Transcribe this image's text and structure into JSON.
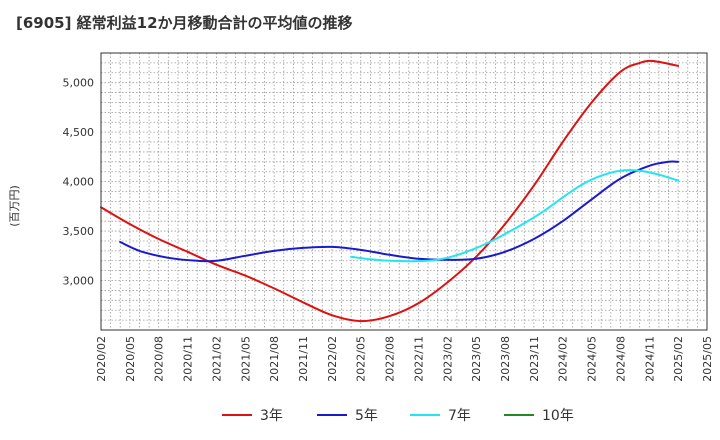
{
  "chart_data": {
    "type": "line",
    "title": "[6905]  経常利益12か月移動合計の平均値の推移",
    "ylabel": "(百万円)",
    "xlabel": "",
    "ylim": [
      2500,
      5300
    ],
    "yticks": [
      3000,
      3500,
      4000,
      4500,
      5000
    ],
    "ytick_labels": [
      "3,000",
      "3,500",
      "4,000",
      "4,500",
      "5,000"
    ],
    "x_tick_labels": [
      "2020/02",
      "2020/05",
      "2020/08",
      "2020/11",
      "2021/02",
      "2021/05",
      "2021/08",
      "2021/11",
      "2022/02",
      "2022/05",
      "2022/08",
      "2022/11",
      "2023/02",
      "2023/05",
      "2023/08",
      "2023/11",
      "2024/02",
      "2024/05",
      "2024/08",
      "2024/11",
      "2025/02",
      "2025/05"
    ],
    "x_unit": "month index from 2020/02",
    "xlim": [
      0,
      63
    ],
    "grid": true,
    "series": [
      {
        "name": "3年",
        "color": "#dd1111",
        "x": [
          0,
          3,
          6,
          9,
          12,
          15,
          18,
          21,
          24,
          27,
          30,
          33,
          36,
          39,
          42,
          45,
          48,
          51,
          54,
          56,
          57,
          58,
          60
        ],
        "values": [
          3740,
          3570,
          3420,
          3290,
          3160,
          3050,
          2920,
          2780,
          2650,
          2590,
          2640,
          2770,
          2980,
          3240,
          3570,
          3960,
          4400,
          4800,
          5110,
          5200,
          5220,
          5210,
          5170
        ]
      },
      {
        "name": "5年",
        "color": "#1a1acc",
        "x": [
          2,
          4,
          7,
          10,
          12,
          15,
          18,
          21,
          24,
          27,
          30,
          33,
          36,
          39,
          42,
          45,
          48,
          51,
          54,
          57,
          59,
          60
        ],
        "values": [
          3390,
          3300,
          3230,
          3200,
          3200,
          3250,
          3300,
          3330,
          3340,
          3310,
          3260,
          3220,
          3210,
          3220,
          3290,
          3420,
          3600,
          3820,
          4030,
          4160,
          4200,
          4200
        ]
      },
      {
        "name": "7年",
        "color": "#22e5f2",
        "x": [
          26,
          28,
          30,
          32,
          34,
          36,
          38,
          40,
          42,
          44,
          46,
          48,
          50,
          52,
          54,
          56,
          58,
          60
        ],
        "values": [
          3240,
          3215,
          3200,
          3195,
          3200,
          3230,
          3290,
          3370,
          3470,
          3580,
          3700,
          3840,
          3970,
          4060,
          4110,
          4110,
          4070,
          4010
        ]
      },
      {
        "name": "10年",
        "color": "#228822",
        "x": [],
        "values": []
      }
    ]
  }
}
